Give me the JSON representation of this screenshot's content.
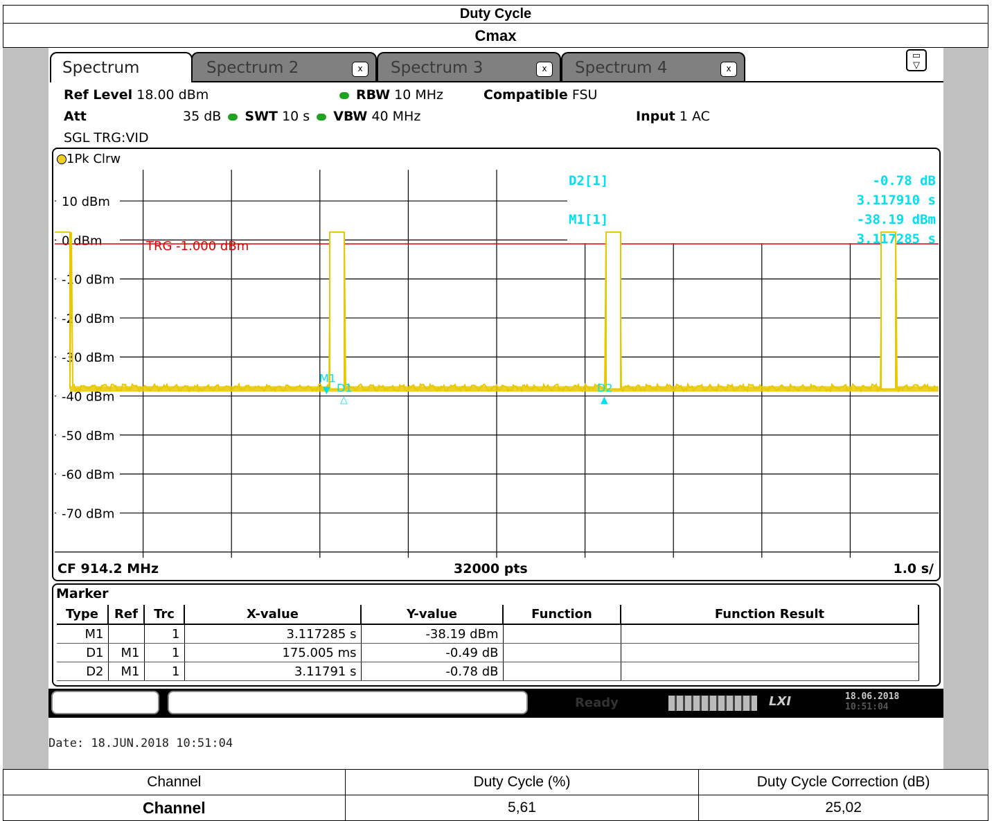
{
  "report": {
    "title": "Duty Cycle",
    "subtitle": "Cmax"
  },
  "tabs": [
    {
      "label": "Spectrum",
      "active": true
    },
    {
      "label": "Spectrum 2",
      "close": "x"
    },
    {
      "label": "Spectrum 3",
      "close": "x"
    },
    {
      "label": "Spectrum 4",
      "close": "x"
    }
  ],
  "settings": {
    "ref_level_label": "Ref Level",
    "ref_level_value": "18.00 dBm",
    "att_label": "Att",
    "att_value": "35 dB",
    "swt_label": "SWT",
    "swt_value": "10 s",
    "rbw_label": "RBW",
    "rbw_value": "10 MHz",
    "vbw_label": "VBW",
    "vbw_value": "40 MHz",
    "compatible_label": "Compatible",
    "compatible_value": "FSU",
    "input_label": "Input",
    "input_value": "1 AC",
    "trigger": "SGL TRG:VID"
  },
  "trace": {
    "label": "1Pk Clrw",
    "color": "#e8c800"
  },
  "plot": {
    "y_labels": [
      "10 dBm",
      "0 dBm",
      "-10 dBm",
      "-20 dBm",
      "-30 dBm",
      "-40 dBm",
      "-50 dBm",
      "-60 dBm",
      "-70 dBm"
    ],
    "trg_label": "TRG  -1.000 dBm",
    "marker_readout": {
      "d2_name": "D2[1]",
      "d2_val": "-0.78 dB",
      "d2_x": "3.117910 s",
      "m1_name": "M1[1]",
      "m1_val": "-38.19 dBm",
      "m1_x": "3.117285 s"
    },
    "marker_tags": [
      "M1",
      "D1",
      "D2"
    ],
    "cf": "CF 914.2 MHz",
    "pts": "32000 pts",
    "span": "1.0 s/",
    "colors": {
      "trace": "#e8c800",
      "marker": "#00e0f0",
      "trg": "#e00000"
    }
  },
  "marker_table": {
    "title": "Marker",
    "headers": [
      "Type",
      "Ref",
      "Trc",
      "X-value",
      "Y-value",
      "Function",
      "Function Result"
    ],
    "rows": [
      [
        "M1",
        "",
        "1",
        "3.117285 s",
        "-38.19 dBm",
        "",
        ""
      ],
      [
        "D1",
        "M1",
        "1",
        "175.005 ms",
        "-0.49 dB",
        "",
        ""
      ],
      [
        "D2",
        "M1",
        "1",
        "3.11791 s",
        "-0.78 dB",
        "",
        ""
      ]
    ]
  },
  "status": {
    "ready": "Ready",
    "lxi": "LXI",
    "date": "18.06.2018",
    "time": "10:51:04"
  },
  "datestamp": "Date: 18.JUN.2018  10:51:04",
  "results": {
    "headers": [
      "Channel",
      "Duty Cycle (%)",
      "Duty Cycle Correction (dB)"
    ],
    "row": [
      "Channel",
      "5,61",
      "25,02"
    ]
  }
}
